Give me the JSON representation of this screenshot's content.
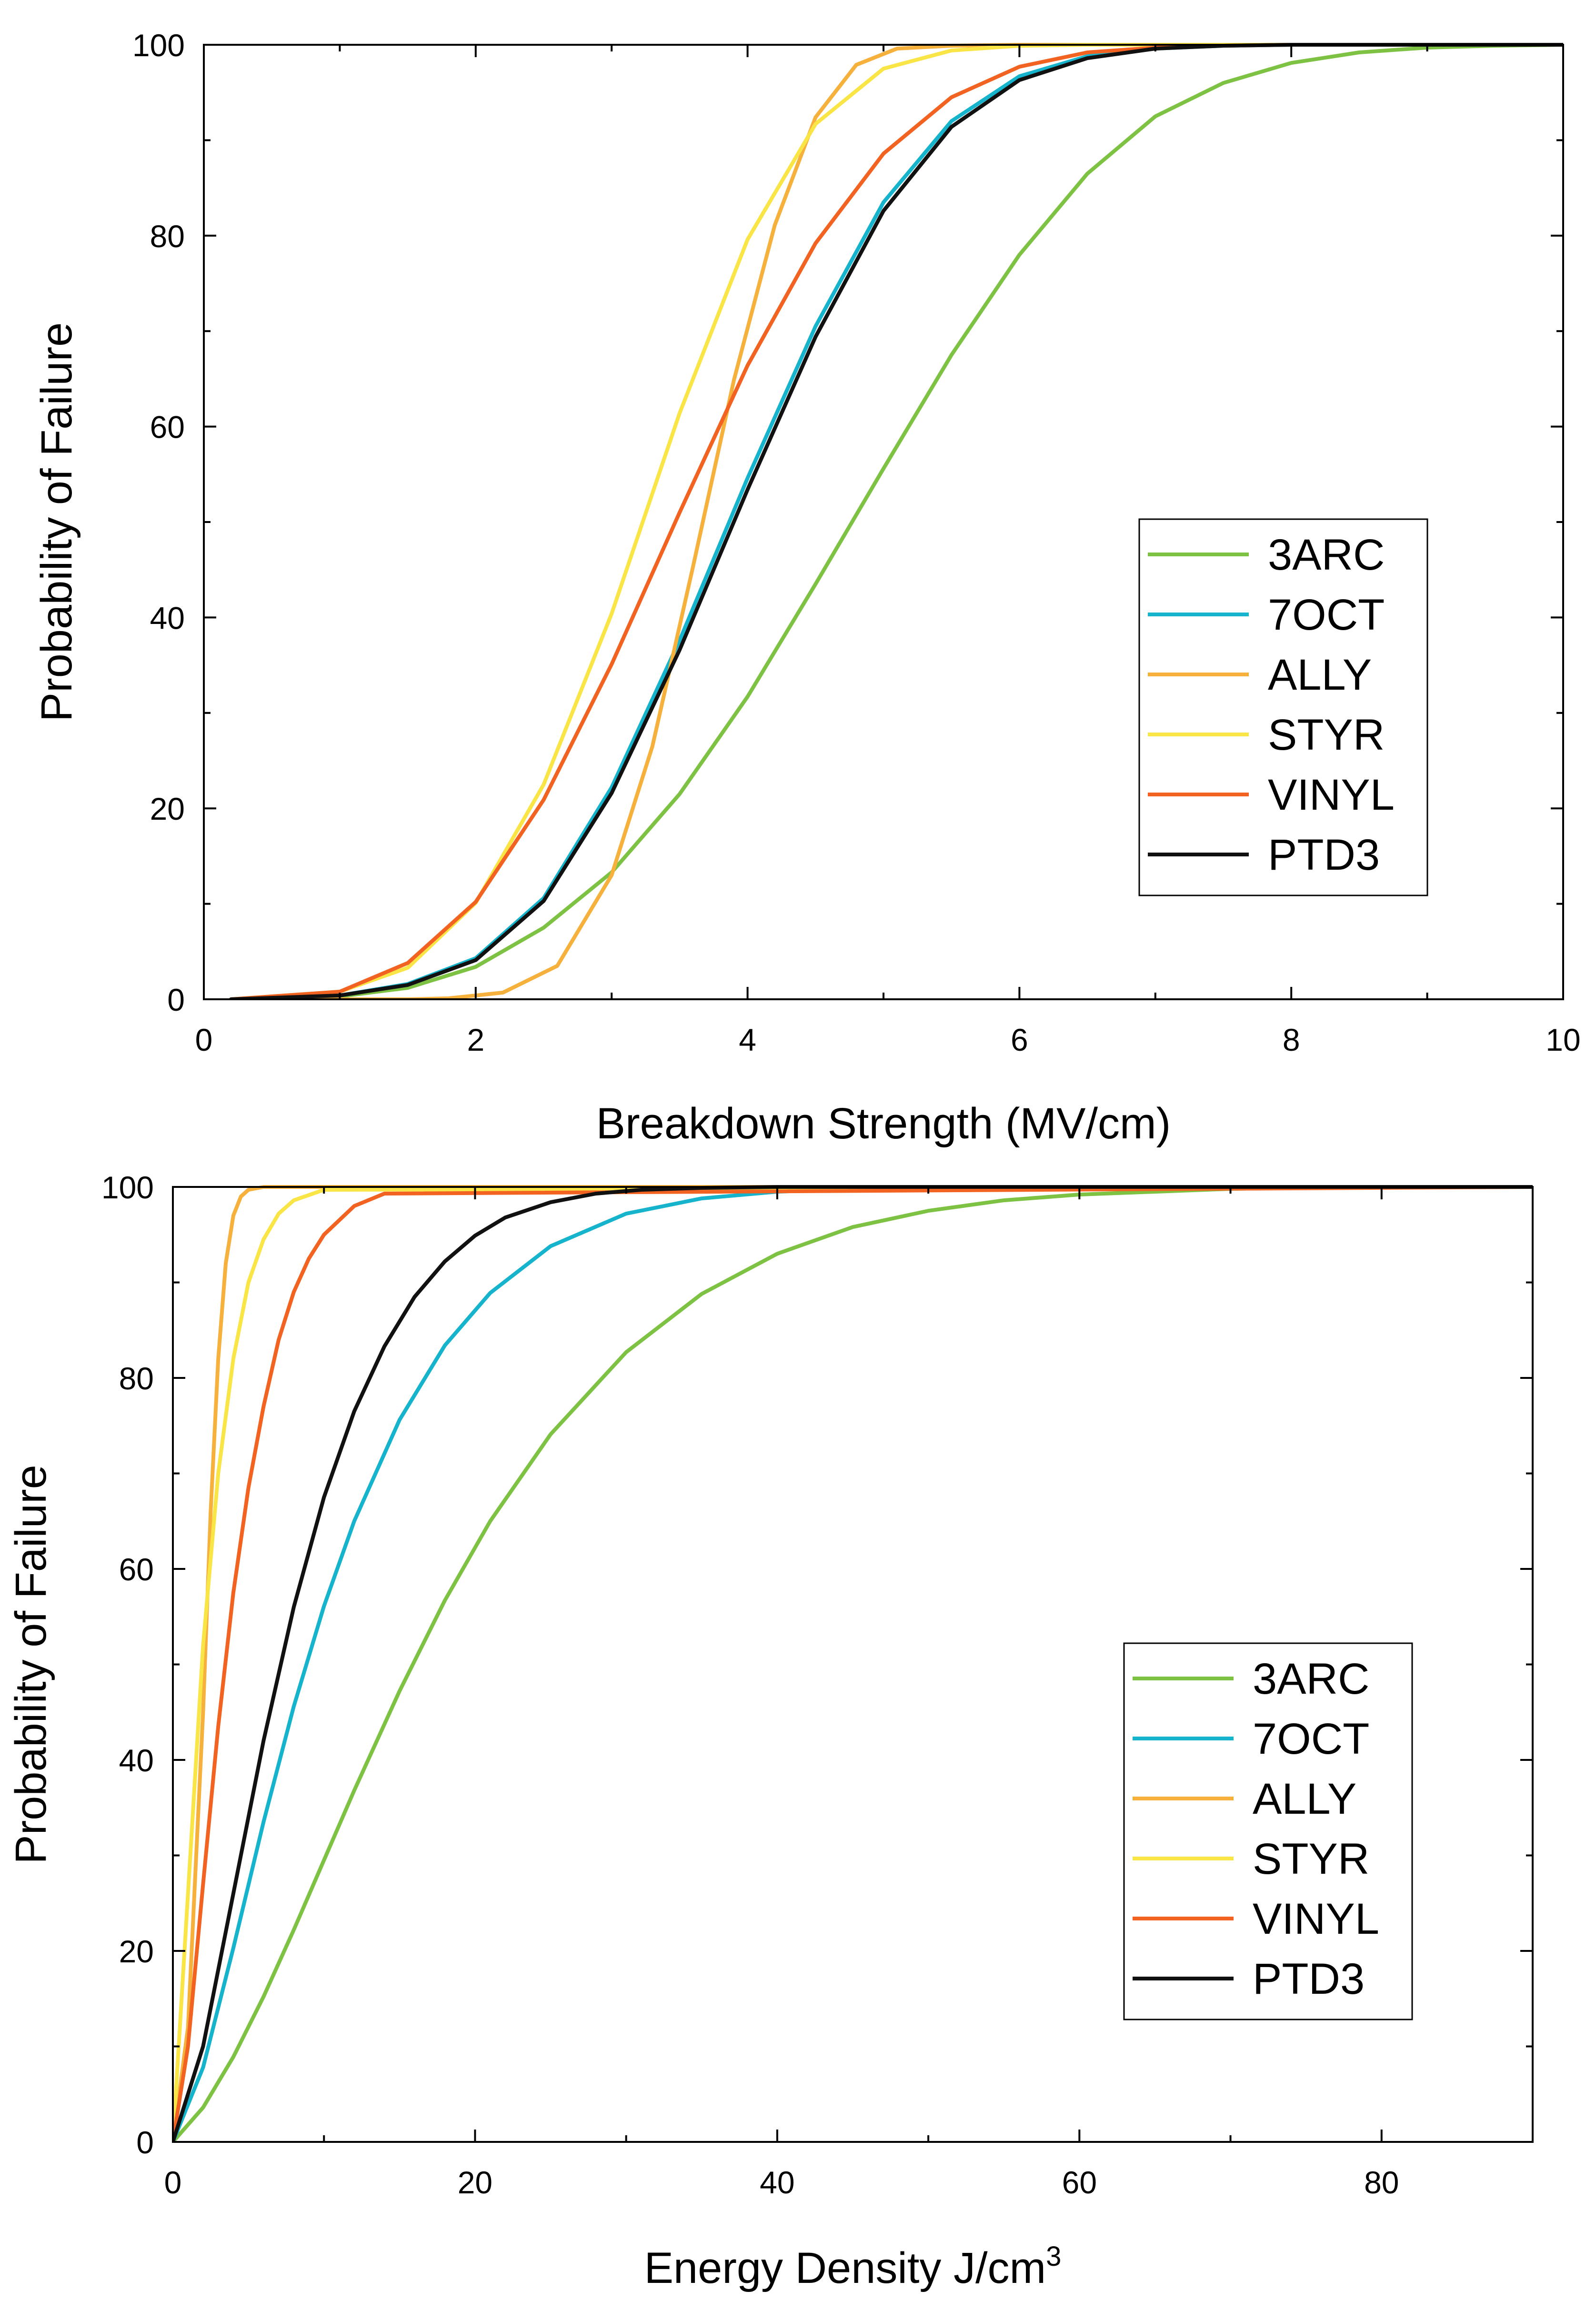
{
  "chart_data": [
    {
      "type": "line",
      "title": "",
      "xlabel": "Breakdown Strength (MV/cm)",
      "ylabel": "Probability of Failure",
      "xlim": [
        0,
        10
      ],
      "ylim": [
        0,
        100
      ],
      "xticks": [
        "0",
        "2",
        "4",
        "6",
        "8",
        "10"
      ],
      "yticks": [
        "0",
        "20",
        "40",
        "60",
        "80",
        "100"
      ],
      "legend_position": "center-right",
      "grid": false,
      "series": [
        {
          "name": "3ARC",
          "color": "#7dc242",
          "x": [
            0.2,
            1,
            1.5,
            2,
            2.5,
            3,
            3.5,
            4,
            4.5,
            5,
            5.5,
            6,
            6.5,
            7,
            7.5,
            8,
            8.5,
            9,
            9.5,
            10
          ],
          "y": [
            0,
            0.3,
            1.2,
            3.4,
            7.5,
            13.3,
            21.5,
            31.7,
            43.5,
            55.6,
            67.5,
            78,
            86.5,
            92.5,
            96,
            98.1,
            99.2,
            99.7,
            99.9,
            100
          ]
        },
        {
          "name": "7OCT",
          "color": "#16b3cc",
          "x": [
            0.2,
            1,
            1.5,
            2,
            2.5,
            3,
            3.5,
            4,
            4.5,
            5,
            5.5,
            6,
            6.5,
            7,
            7.5,
            8,
            8.5,
            10
          ],
          "y": [
            0,
            0.4,
            1.6,
            4.3,
            10.6,
            22.2,
            37.6,
            54.6,
            70.5,
            83.5,
            92,
            96.7,
            98.8,
            99.6,
            99.9,
            100,
            100,
            100
          ]
        },
        {
          "name": "ALLY",
          "color": "#f6b03c",
          "x": [
            0.2,
            1,
            1.5,
            1.8,
            2.2,
            2.6,
            3,
            3.3,
            3.6,
            3.9,
            4.2,
            4.5,
            4.8,
            5.1,
            5.5,
            6,
            10
          ],
          "y": [
            0,
            0,
            0,
            0.1,
            0.7,
            3.5,
            13,
            26.5,
            45.4,
            64.9,
            81.1,
            92.4,
            97.9,
            99.6,
            99.9,
            100,
            100
          ]
        },
        {
          "name": "STYR",
          "color": "#f9e546",
          "x": [
            0.2,
            1,
            1.5,
            2,
            2.5,
            3,
            3.5,
            4,
            4.5,
            5,
            5.5,
            6,
            6.5,
            10
          ],
          "y": [
            0,
            0.8,
            3.3,
            10.1,
            22.5,
            40.4,
            61.4,
            79.6,
            91.7,
            97.5,
            99.4,
            99.9,
            100,
            100
          ]
        },
        {
          "name": "VINYL",
          "color": "#f26322",
          "x": [
            0.2,
            1,
            1.5,
            2,
            2.5,
            3,
            3.5,
            4,
            4.5,
            5,
            5.5,
            6,
            6.5,
            7,
            7.5,
            8,
            10
          ],
          "y": [
            0,
            0.8,
            3.8,
            10.2,
            20.9,
            35.1,
            51,
            66.4,
            79.2,
            88.6,
            94.5,
            97.7,
            99.2,
            99.7,
            99.9,
            100,
            100
          ]
        },
        {
          "name": "PTD3",
          "color": "#111111",
          "x": [
            0.2,
            1,
            1.5,
            2,
            2.5,
            3,
            3.5,
            4,
            4.5,
            5,
            5.5,
            6,
            6.5,
            7,
            7.5,
            8,
            8.5,
            10
          ],
          "y": [
            0,
            0.4,
            1.5,
            4.1,
            10.3,
            21.6,
            36.6,
            53.4,
            69.4,
            82.6,
            91.4,
            96.3,
            98.6,
            99.6,
            99.9,
            100,
            100,
            100
          ]
        }
      ]
    },
    {
      "type": "line",
      "title": "",
      "xlabel": "Energy Density J/cm",
      "xlabel_superscript": "3",
      "ylabel": "Probability of Failure",
      "xlim": [
        0,
        90
      ],
      "ylim": [
        0,
        100
      ],
      "xticks": [
        "0",
        "20",
        "40",
        "60",
        "80"
      ],
      "yticks": [
        "0",
        "20",
        "40",
        "60",
        "80",
        "100"
      ],
      "legend_position": "center-right",
      "grid": false,
      "series": [
        {
          "name": "3ARC",
          "color": "#7dc242",
          "x": [
            0,
            2,
            4,
            6,
            8,
            10,
            12,
            15,
            18,
            21,
            25,
            30,
            35,
            40,
            45,
            50,
            55,
            60,
            70,
            80,
            90
          ],
          "y": [
            0,
            3.6,
            8.9,
            15.2,
            22.2,
            29.5,
            36.8,
            47.2,
            56.7,
            65,
            74.1,
            82.7,
            88.8,
            93,
            95.8,
            97.5,
            98.6,
            99.2,
            99.8,
            100,
            100
          ]
        },
        {
          "name": "7OCT",
          "color": "#16b3cc",
          "x": [
            0,
            2,
            4,
            6,
            8,
            10,
            12,
            15,
            18,
            21,
            25,
            30,
            35,
            40,
            45,
            50,
            60,
            90
          ],
          "y": [
            0,
            7.8,
            20.3,
            33.5,
            45.6,
            56.1,
            65,
            75.6,
            83.4,
            88.9,
            93.8,
            97.2,
            98.8,
            99.5,
            99.8,
            100,
            100,
            100
          ]
        },
        {
          "name": "ALLY",
          "color": "#f6b03c",
          "x": [
            0,
            1,
            2,
            2.5,
            3,
            3.5,
            4,
            4.5,
            5,
            6,
            7,
            90
          ],
          "y": [
            0,
            12,
            45,
            66,
            82,
            92,
            97,
            99,
            99.7,
            100,
            100,
            100
          ]
        },
        {
          "name": "STYR",
          "color": "#f9e546",
          "x": [
            0,
            1,
            2,
            3,
            4,
            5,
            6,
            7,
            8,
            10,
            90
          ],
          "y": [
            0,
            26,
            52,
            70,
            82,
            90,
            94.5,
            97.2,
            98.6,
            99.7,
            100
          ]
        },
        {
          "name": "VINYL",
          "color": "#f26322",
          "x": [
            0,
            1,
            2,
            3,
            4,
            5,
            6,
            7,
            8,
            9,
            10,
            12,
            14,
            90
          ],
          "y": [
            0,
            10,
            27,
            43.5,
            57.5,
            68.5,
            77,
            84,
            89,
            92.5,
            95,
            98,
            99.3,
            100
          ]
        },
        {
          "name": "PTD3",
          "color": "#111111",
          "x": [
            0,
            2,
            4,
            6,
            8,
            10,
            12,
            14,
            16,
            18,
            20,
            22,
            25,
            28,
            31,
            35,
            40,
            90
          ],
          "y": [
            0,
            10,
            26,
            42,
            56,
            67.5,
            76.5,
            83.3,
            88.5,
            92.2,
            94.9,
            96.8,
            98.4,
            99.3,
            99.7,
            99.9,
            100,
            100
          ]
        }
      ]
    }
  ]
}
